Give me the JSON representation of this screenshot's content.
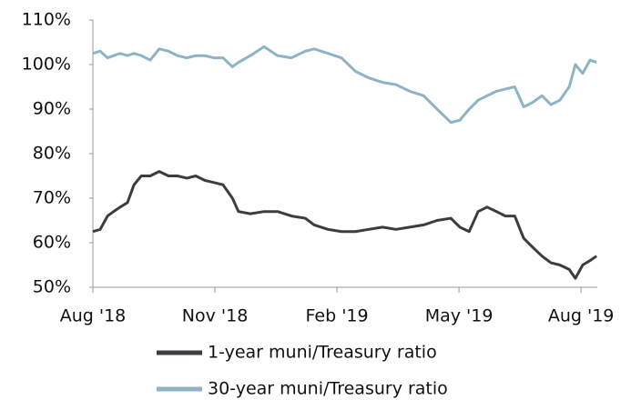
{
  "chart_data": {
    "type": "line",
    "x": [
      0,
      0.18,
      0.36,
      0.51,
      0.67,
      0.85,
      1.01,
      1.19,
      1.41,
      1.63,
      1.86,
      2.08,
      2.31,
      2.53,
      2.75,
      2.98,
      3.2,
      3.43,
      3.58,
      3.87,
      4.21,
      4.54,
      4.88,
      5.22,
      5.44,
      5.78,
      6.11,
      6.45,
      6.78,
      7.12,
      7.45,
      7.79,
      8.13,
      8.46,
      8.8,
      9.02,
      9.25,
      9.47,
      9.69,
      9.92,
      10.14,
      10.37,
      10.59,
      10.81,
      11.04,
      11.26,
      11.48,
      11.71,
      11.86,
      12.04,
      12.22,
      12.38
    ],
    "series": [
      {
        "name": "1-year muni/Treasury ratio",
        "color": "#3d3d40",
        "values": [
          62.5,
          63,
          66,
          67,
          68,
          69,
          73,
          75,
          75,
          76,
          75,
          75,
          74.5,
          75,
          74,
          73.5,
          73,
          70,
          67,
          66.5,
          67,
          67,
          66,
          65.5,
          64,
          63,
          62.5,
          62.5,
          63,
          63.5,
          63,
          63.5,
          64,
          65,
          65.5,
          63.5,
          62.5,
          67,
          68,
          67,
          66,
          66,
          61,
          59,
          57,
          55.5,
          55,
          54,
          52,
          55,
          56,
          57
        ]
      },
      {
        "name": "30-year muni/Treasury ratio",
        "color": "#8db3c5",
        "values": [
          102.5,
          103,
          101.5,
          102,
          102.5,
          102,
          102.5,
          102,
          101,
          103.5,
          103,
          102,
          101.5,
          102,
          102,
          101.5,
          101.5,
          99.5,
          100.5,
          102,
          104,
          102,
          101.5,
          103,
          103.5,
          102.5,
          101.5,
          98.5,
          97,
          96,
          95.5,
          94,
          93,
          90,
          87,
          87.5,
          90,
          92,
          93,
          94,
          94.5,
          95,
          90.5,
          91.5,
          93,
          91,
          92,
          95,
          100,
          98,
          101,
          100.5
        ]
      }
    ],
    "xlim": [
      0,
      12.4
    ],
    "xticks": [
      {
        "value": 0,
        "label": "Aug '18"
      },
      {
        "value": 3,
        "label": "Nov '18"
      },
      {
        "value": 6,
        "label": "Feb '19"
      },
      {
        "value": 9,
        "label": "May '19"
      },
      {
        "value": 12,
        "label": "Aug '19"
      }
    ],
    "ylim": [
      50,
      110
    ],
    "yticks": [
      {
        "value": 50,
        "label": "50%"
      },
      {
        "value": 60,
        "label": "60%"
      },
      {
        "value": 70,
        "label": "70%"
      },
      {
        "value": 80,
        "label": "80%"
      },
      {
        "value": 90,
        "label": "90%"
      },
      {
        "value": 100,
        "label": "100%"
      },
      {
        "value": 110,
        "label": "110%"
      }
    ],
    "grid": false
  }
}
